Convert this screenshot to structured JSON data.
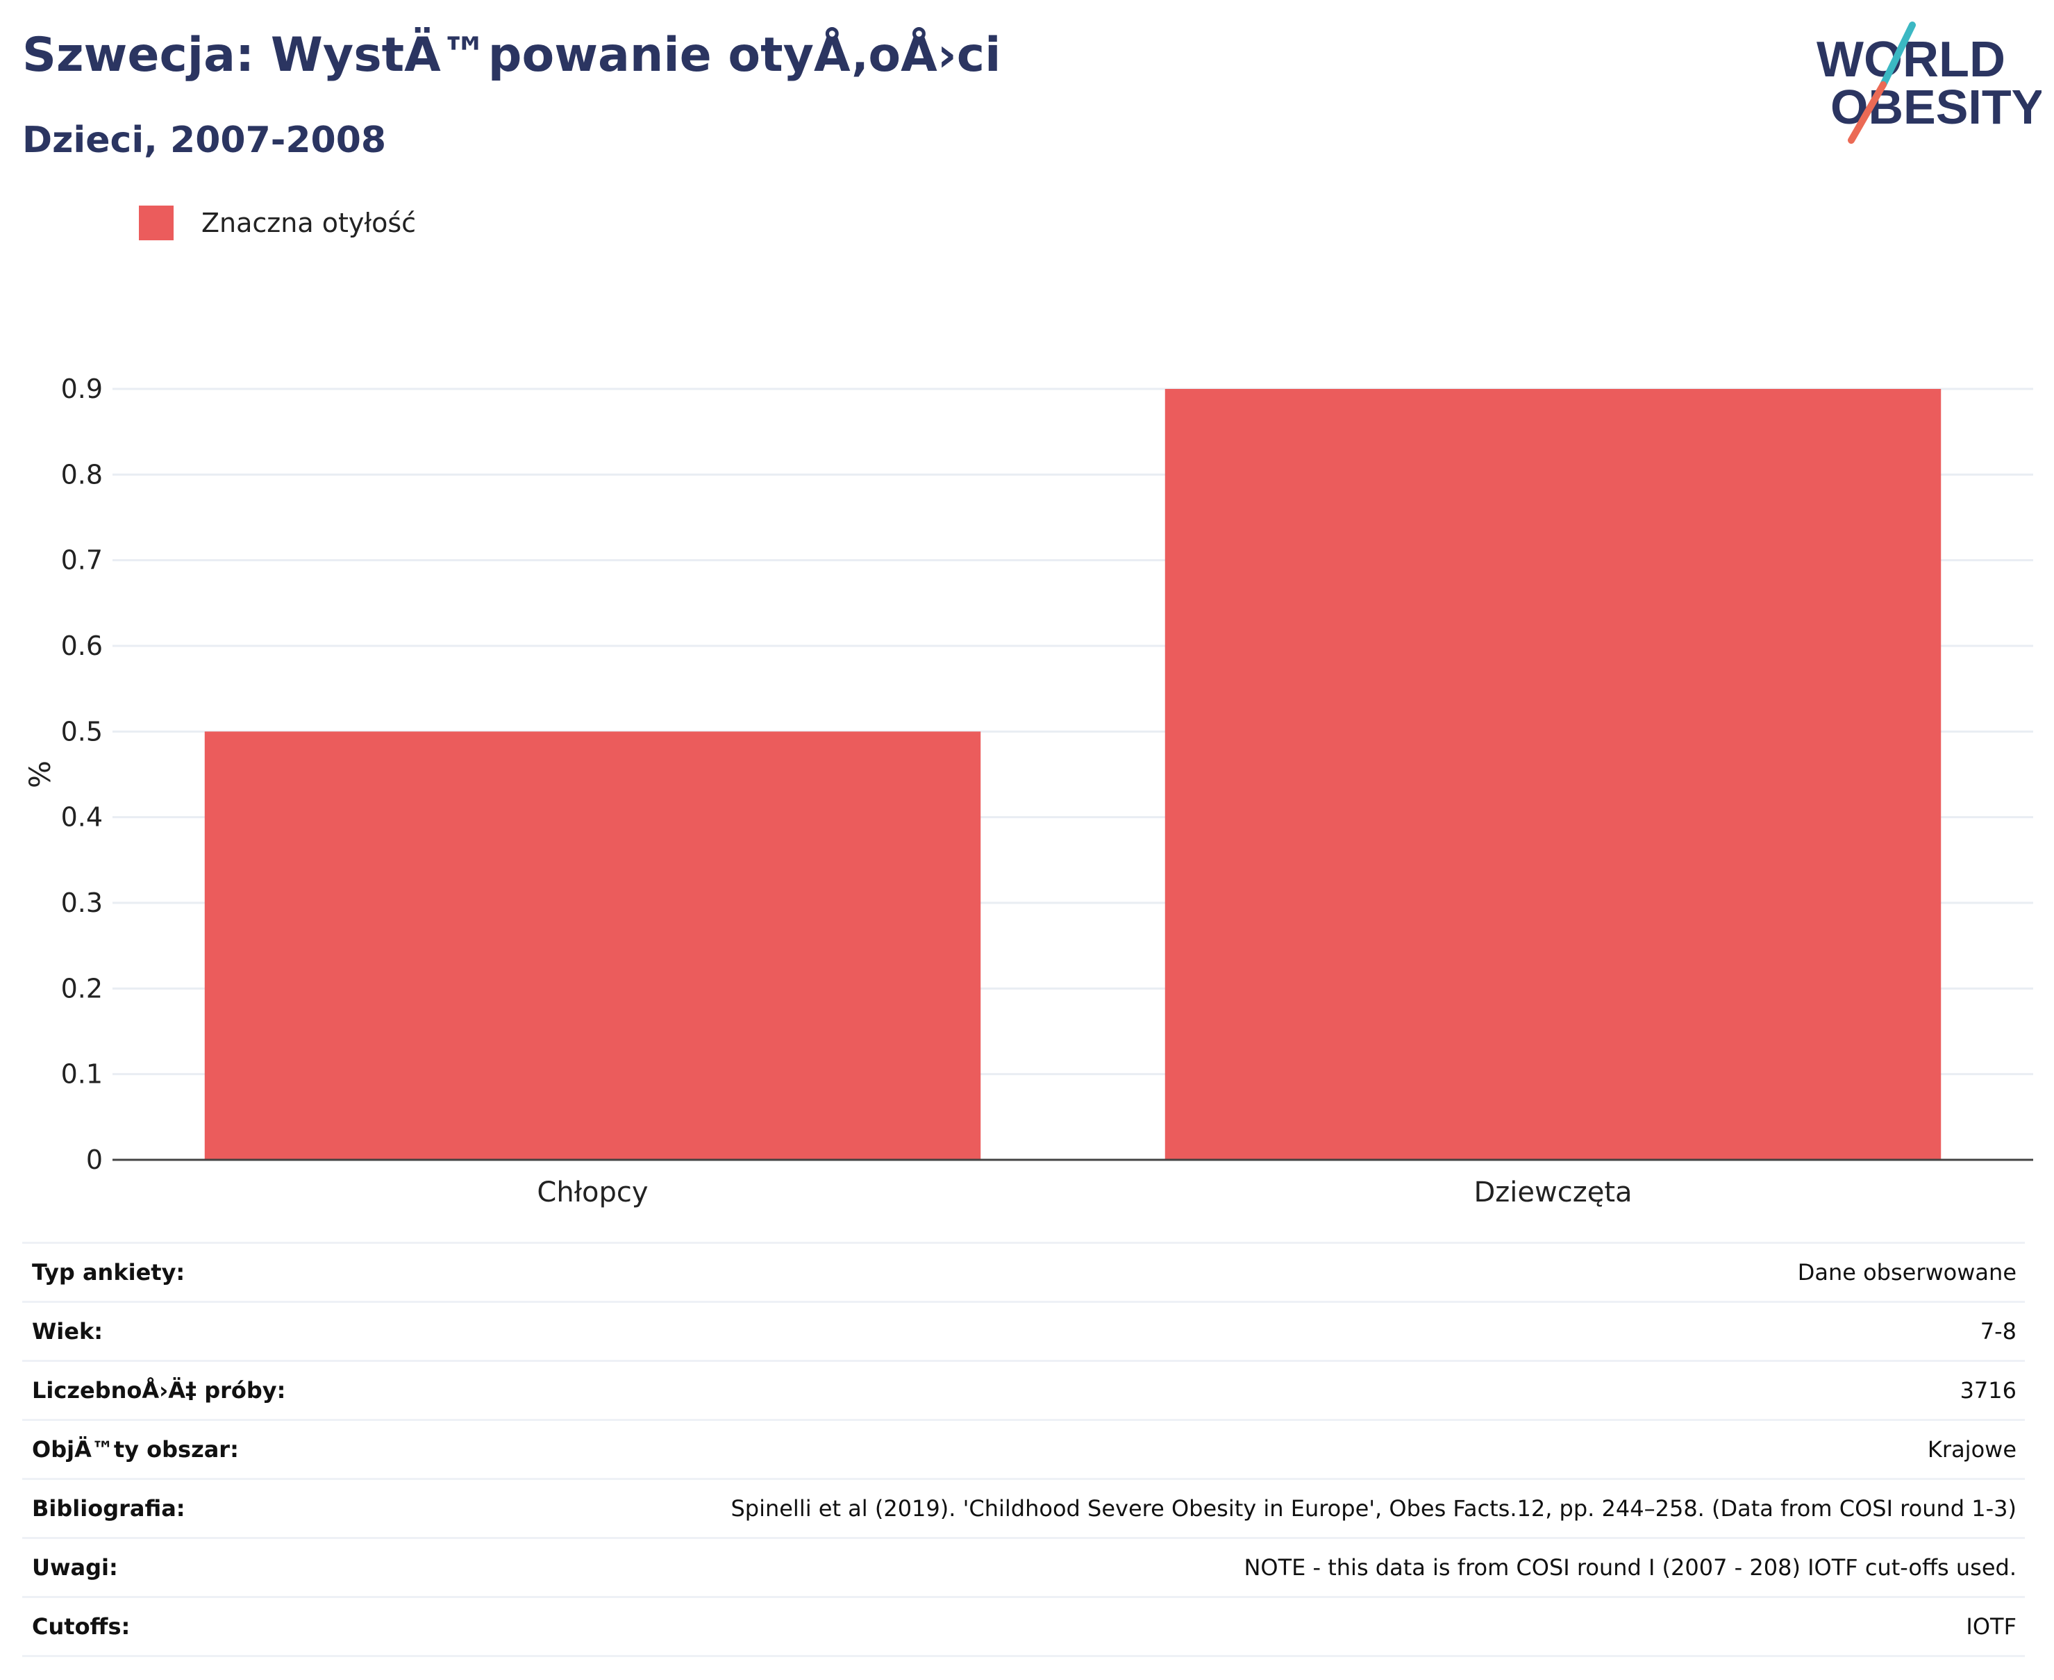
{
  "header": {
    "title": "Szwecja: WystÄ™powanie otyÅ‚oÅ›ci",
    "subtitle": "Dzieci, 2007-2008"
  },
  "logo": {
    "line1": "WORLD",
    "line2": "OBESITY",
    "colors": {
      "text": "#2b3561",
      "slash_teal": "#3bb8c3",
      "slash_red": "#eb6a55"
    }
  },
  "chart_data": {
    "type": "bar",
    "categories": [
      "Chłopcy",
      "Dziewczęta"
    ],
    "series": [
      {
        "name": "Znaczna otyłość",
        "values": [
          0.5,
          0.9
        ],
        "color": "#eb5c5c"
      }
    ],
    "title": "",
    "xlabel": "",
    "ylabel": "%",
    "ylim": [
      0,
      0.9
    ],
    "yticks": [
      "0",
      "0.1",
      "0.2",
      "0.3",
      "0.4",
      "0.5",
      "0.6",
      "0.7",
      "0.8",
      "0.9"
    ],
    "grid": true,
    "legend": "top-left"
  },
  "details": [
    {
      "label": "Typ ankiety:",
      "value": "Dane obserwowane"
    },
    {
      "label": "Wiek:",
      "value": "7-8"
    },
    {
      "label": "LiczebnoÅ›Ä‡ próby:",
      "value": "3716"
    },
    {
      "label": "ObjÄ™ty obszar:",
      "value": "Krajowe"
    },
    {
      "label": "Bibliografia:",
      "value": "Spinelli et al (2019). 'Childhood Severe Obesity in Europe', Obes Facts.12, pp. 244–258. (Data from COSI round 1-3)"
    },
    {
      "label": "Uwagi:",
      "value": "NOTE - this data is from COSI round I (2007 - 208) IOTF cut-offs used."
    },
    {
      "label": "Cutoffs:",
      "value": "IOTF"
    }
  ]
}
